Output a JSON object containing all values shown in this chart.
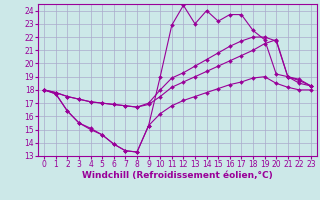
{
  "background_color": "#cce8e8",
  "grid_color": "#aaaacc",
  "line_color": "#990099",
  "marker": "D",
  "markersize": 2,
  "linewidth": 0.8,
  "xlabel": "Windchill (Refroidissement éolien,°C)",
  "xlabel_fontsize": 6.5,
  "tick_fontsize": 5.5,
  "xlim": [
    -0.5,
    23.5
  ],
  "ylim": [
    13,
    24.5
  ],
  "yticks": [
    13,
    14,
    15,
    16,
    17,
    18,
    19,
    20,
    21,
    22,
    23,
    24
  ],
  "xticks": [
    0,
    1,
    2,
    3,
    4,
    5,
    6,
    7,
    8,
    9,
    10,
    11,
    12,
    13,
    14,
    15,
    16,
    17,
    18,
    19,
    20,
    21,
    22,
    23
  ],
  "series": [
    {
      "x": [
        0,
        1,
        2,
        3,
        4,
        5,
        6,
        7,
        8,
        9,
        10,
        11,
        12,
        13,
        14,
        15,
        16,
        17,
        18,
        19,
        20,
        21,
        22,
        23
      ],
      "y": [
        18.0,
        17.7,
        16.4,
        15.5,
        15.1,
        14.6,
        13.9,
        13.4,
        13.3,
        15.3,
        19.0,
        22.9,
        24.4,
        23.0,
        24.0,
        23.2,
        23.7,
        23.7,
        22.5,
        21.8,
        19.2,
        19.0,
        18.5,
        18.3
      ]
    },
    {
      "x": [
        0,
        1,
        2,
        3,
        4,
        5,
        6,
        7,
        8,
        9,
        10,
        11,
        12,
        13,
        14,
        15,
        16,
        17,
        18,
        19,
        20,
        21,
        22,
        23
      ],
      "y": [
        18.0,
        17.8,
        17.5,
        17.3,
        17.1,
        17.0,
        16.9,
        16.8,
        16.7,
        17.0,
        18.0,
        18.9,
        19.3,
        19.8,
        20.3,
        20.8,
        21.3,
        21.7,
        22.0,
        22.0,
        21.7,
        19.0,
        18.8,
        18.3
      ]
    },
    {
      "x": [
        0,
        1,
        2,
        3,
        4,
        5,
        6,
        7,
        8,
        9,
        10,
        11,
        12,
        13,
        14,
        15,
        16,
        17,
        18,
        19,
        20,
        21,
        22,
        23
      ],
      "y": [
        18.0,
        17.8,
        17.5,
        17.3,
        17.1,
        17.0,
        16.9,
        16.8,
        16.7,
        16.9,
        17.5,
        18.2,
        18.6,
        19.0,
        19.4,
        19.8,
        20.2,
        20.6,
        21.0,
        21.5,
        21.8,
        19.0,
        18.7,
        18.3
      ]
    },
    {
      "x": [
        0,
        1,
        2,
        3,
        4,
        5,
        6,
        7,
        8,
        9,
        10,
        11,
        12,
        13,
        14,
        15,
        16,
        17,
        18,
        19,
        20,
        21,
        22,
        23
      ],
      "y": [
        18.0,
        17.7,
        16.4,
        15.5,
        15.0,
        14.6,
        13.9,
        13.4,
        13.3,
        15.3,
        16.2,
        16.8,
        17.2,
        17.5,
        17.8,
        18.1,
        18.4,
        18.6,
        18.9,
        19.0,
        18.5,
        18.2,
        18.0,
        18.0
      ]
    }
  ]
}
